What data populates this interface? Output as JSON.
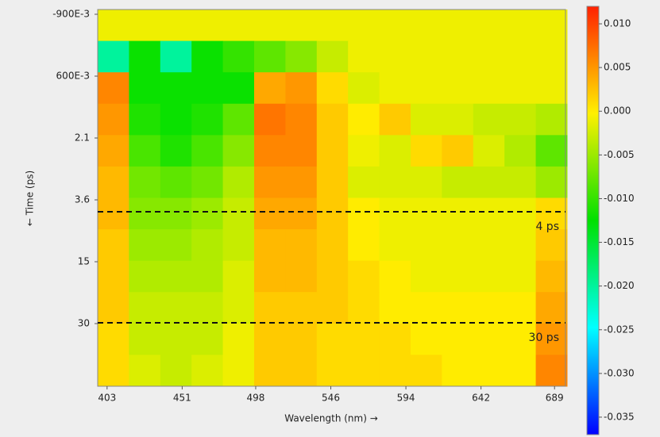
{
  "chart_data": {
    "type": "heatmap",
    "xlabel": "Wavelength (nm) →",
    "ylabel": "← Time (ps)",
    "xlim": [
      397,
      696
    ],
    "xticks": [
      403,
      451,
      498,
      546,
      594,
      642,
      689
    ],
    "ytick_labels": [
      "-900E-3",
      "600E-3",
      "2.1",
      "3.6",
      "15",
      "30"
    ],
    "x": [
      407,
      427,
      447,
      467,
      487,
      507,
      527,
      547,
      567,
      587,
      607,
      627,
      647,
      667,
      687
    ],
    "z": [
      [
        -0.001,
        -0.001,
        -0.001,
        -0.001,
        -0.001,
        -0.001,
        -0.001,
        -0.001,
        -0.001,
        -0.001,
        -0.001,
        -0.001,
        -0.001,
        -0.001,
        -0.001
      ],
      [
        -0.02,
        -0.012,
        -0.02,
        -0.012,
        -0.01,
        -0.008,
        -0.006,
        -0.003,
        -0.001,
        -0.001,
        -0.001,
        -0.001,
        -0.001,
        -0.001,
        -0.001
      ],
      [
        0.006,
        -0.012,
        -0.012,
        -0.012,
        -0.012,
        0.004,
        0.005,
        0.001,
        -0.002,
        -0.001,
        -0.001,
        -0.001,
        -0.001,
        -0.001,
        -0.001
      ],
      [
        0.005,
        -0.011,
        -0.012,
        -0.011,
        -0.008,
        0.007,
        0.006,
        0.002,
        0.0,
        0.002,
        -0.002,
        -0.002,
        -0.003,
        -0.003,
        -0.004
      ],
      [
        0.004,
        -0.009,
        -0.011,
        -0.009,
        -0.006,
        0.006,
        0.006,
        0.002,
        -0.001,
        -0.002,
        0.001,
        0.002,
        -0.002,
        -0.004,
        -0.008
      ],
      [
        0.003,
        -0.007,
        -0.008,
        -0.007,
        -0.004,
        0.005,
        0.005,
        0.002,
        -0.002,
        -0.002,
        -0.002,
        -0.003,
        -0.003,
        -0.003,
        -0.005
      ],
      [
        0.003,
        -0.006,
        -0.006,
        -0.005,
        -0.003,
        0.004,
        0.004,
        0.002,
        0.0,
        -0.001,
        -0.001,
        -0.001,
        -0.001,
        -0.001,
        0.001
      ],
      [
        0.002,
        -0.005,
        -0.005,
        -0.004,
        -0.003,
        0.003,
        0.003,
        0.002,
        0.0,
        -0.001,
        -0.001,
        -0.001,
        -0.001,
        -0.001,
        0.002
      ],
      [
        0.002,
        -0.004,
        -0.004,
        -0.004,
        -0.002,
        0.003,
        0.003,
        0.002,
        0.001,
        0.0,
        -0.001,
        -0.001,
        -0.001,
        -0.001,
        0.003
      ],
      [
        0.002,
        -0.003,
        -0.003,
        -0.003,
        -0.002,
        0.002,
        0.002,
        0.002,
        0.001,
        0.0,
        0.0,
        0.0,
        0.0,
        0.0,
        0.004
      ],
      [
        0.001,
        -0.003,
        -0.003,
        -0.003,
        -0.001,
        0.002,
        0.002,
        0.001,
        0.001,
        0.001,
        0.0,
        0.0,
        0.0,
        0.0,
        0.005
      ],
      [
        0.001,
        -0.002,
        -0.003,
        -0.002,
        -0.001,
        0.002,
        0.002,
        0.001,
        0.001,
        0.001,
        0.001,
        0.0,
        0.0,
        0.0,
        0.006
      ]
    ],
    "zlim": [
      -0.037,
      0.012
    ],
    "colormap": [
      "#0000ff",
      "#00ffff",
      "#00e000",
      "#fff000",
      "#ff2000"
    ],
    "zticks": [
      {
        "value": 0.01,
        "label": "0.010"
      },
      {
        "value": 0.005,
        "label": "0.005"
      },
      {
        "value": 0,
        "label": "0.000"
      },
      {
        "value": -0.005,
        "label": "-0.005"
      },
      {
        "value": -0.01,
        "label": "-0.010"
      },
      {
        "value": -0.015,
        "label": "-0.015"
      },
      {
        "value": -0.02,
        "label": "-0.020"
      },
      {
        "value": -0.025,
        "label": "-0.025"
      },
      {
        "value": -0.03,
        "label": "-0.030"
      },
      {
        "value": -0.035,
        "label": "-0.035"
      }
    ],
    "annotations": [
      "4 ps",
      "30 ps"
    ]
  }
}
